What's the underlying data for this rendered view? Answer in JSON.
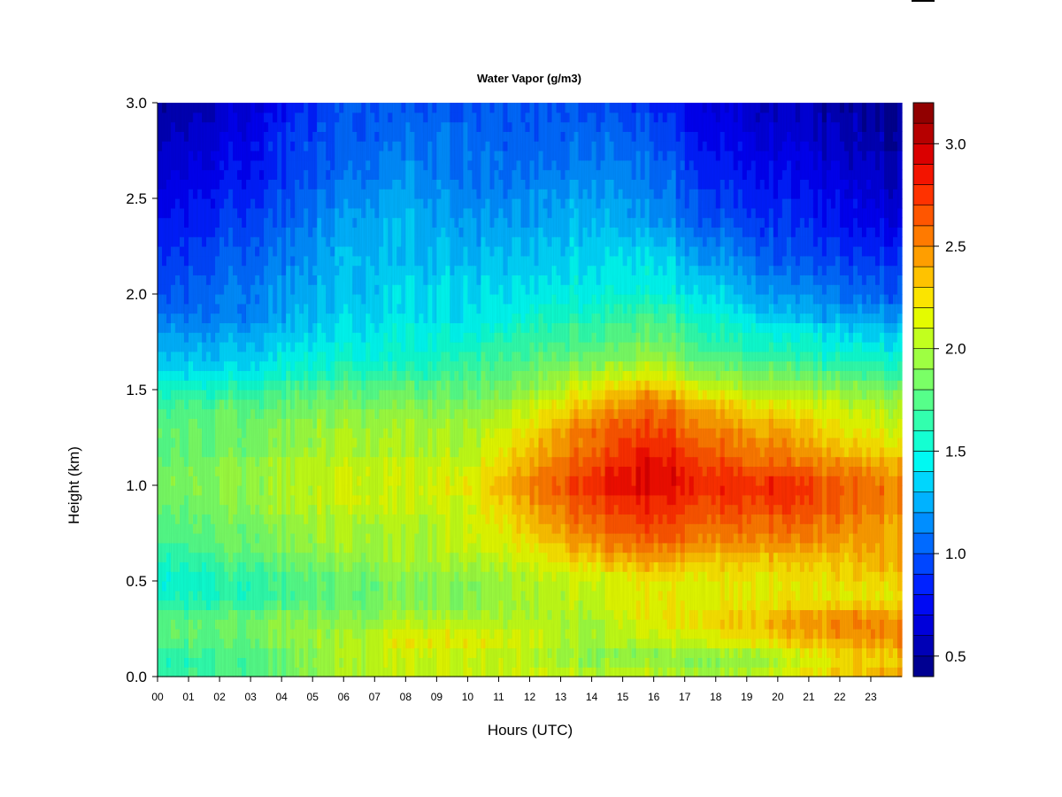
{
  "chart_data": {
    "type": "heatmap",
    "title": "Water Vapor (g/m3)",
    "xlabel": "Hours (UTC)",
    "ylabel": "Height (km)",
    "xlim": [
      0,
      24
    ],
    "ylim": [
      0.0,
      3.0
    ],
    "x_ticks": [
      "00",
      "01",
      "02",
      "03",
      "04",
      "05",
      "06",
      "07",
      "08",
      "09",
      "10",
      "11",
      "12",
      "13",
      "14",
      "15",
      "16",
      "17",
      "18",
      "19",
      "20",
      "21",
      "22",
      "23"
    ],
    "y_ticks": [
      "0.0",
      "0.5",
      "1.0",
      "1.5",
      "2.0",
      "2.5",
      "3.0"
    ],
    "colorbar": {
      "range": [
        0.4,
        3.2
      ],
      "ticks": [
        "0.5",
        "1.0",
        "1.5",
        "2.0",
        "2.5",
        "3.0"
      ],
      "levels": 28,
      "colors": [
        "#00007F",
        "#0000B0",
        "#0000E0",
        "#0010FF",
        "#0040FF",
        "#0070FF",
        "#00A0FF",
        "#00D0FF",
        "#00FFF0",
        "#20FFC0",
        "#50FF90",
        "#80FF60",
        "#B0FF30",
        "#E0FF00",
        "#FFE000",
        "#FFB000",
        "#FF8000",
        "#FF5000",
        "#FF2000",
        "#E00000",
        "#B00000",
        "#7F0000"
      ]
    },
    "heights_km": [
      0.0,
      0.1,
      0.2,
      0.3,
      0.4,
      0.5,
      0.6,
      0.7,
      0.8,
      0.9,
      1.0,
      1.1,
      1.2,
      1.3,
      1.4,
      1.5,
      1.6,
      1.7,
      1.8,
      1.9,
      2.0,
      2.2,
      2.4,
      2.6,
      2.8,
      3.0
    ],
    "hours": [
      0,
      2,
      4,
      6,
      8,
      10,
      12,
      14,
      16,
      18,
      20,
      22,
      24
    ],
    "values": [
      [
        1.7,
        1.7,
        1.8,
        2.0,
        2.1,
        2.1,
        2.1,
        2.1,
        2.1,
        2.0,
        2.1,
        2.3,
        2.4
      ],
      [
        1.6,
        1.7,
        1.8,
        2.0,
        2.1,
        2.1,
        2.0,
        1.9,
        1.9,
        1.9,
        2.0,
        2.2,
        2.3
      ],
      [
        1.8,
        1.8,
        1.9,
        2.0,
        2.2,
        2.2,
        2.1,
        2.0,
        2.1,
        2.2,
        2.3,
        2.4,
        2.5
      ],
      [
        1.8,
        1.8,
        1.9,
        1.9,
        2.0,
        2.0,
        2.0,
        2.0,
        2.2,
        2.3,
        2.4,
        2.5,
        2.5
      ],
      [
        1.6,
        1.6,
        1.7,
        1.8,
        1.9,
        1.9,
        2.0,
        2.1,
        2.2,
        2.2,
        2.2,
        2.2,
        2.2
      ],
      [
        1.5,
        1.6,
        1.7,
        1.8,
        1.9,
        1.9,
        2.0,
        2.1,
        2.2,
        2.2,
        2.2,
        2.2,
        2.3
      ],
      [
        1.6,
        1.7,
        1.8,
        1.9,
        2.0,
        2.0,
        2.1,
        2.3,
        2.4,
        2.3,
        2.3,
        2.3,
        2.4
      ],
      [
        1.7,
        1.8,
        1.9,
        2.0,
        2.0,
        2.1,
        2.2,
        2.5,
        2.6,
        2.5,
        2.5,
        2.4,
        2.4
      ],
      [
        1.8,
        1.8,
        1.9,
        2.0,
        2.0,
        2.1,
        2.3,
        2.6,
        2.7,
        2.6,
        2.6,
        2.5,
        2.4
      ],
      [
        1.8,
        1.9,
        2.0,
        2.1,
        2.1,
        2.1,
        2.4,
        2.7,
        2.8,
        2.7,
        2.7,
        2.6,
        2.5
      ],
      [
        1.9,
        1.9,
        2.0,
        2.1,
        2.1,
        2.2,
        2.5,
        2.8,
        2.9,
        2.8,
        2.8,
        2.6,
        2.5
      ],
      [
        1.8,
        1.9,
        2.0,
        2.1,
        2.1,
        2.1,
        2.4,
        2.7,
        2.9,
        2.7,
        2.6,
        2.5,
        2.4
      ],
      [
        1.8,
        1.8,
        1.9,
        2.0,
        2.0,
        2.0,
        2.3,
        2.6,
        2.8,
        2.6,
        2.5,
        2.3,
        2.2
      ],
      [
        1.8,
        1.8,
        1.9,
        2.0,
        2.0,
        2.0,
        2.2,
        2.6,
        2.7,
        2.5,
        2.4,
        2.2,
        2.1
      ],
      [
        1.7,
        1.8,
        1.8,
        1.9,
        1.9,
        1.9,
        2.1,
        2.4,
        2.6,
        2.4,
        2.2,
        2.1,
        2.0
      ],
      [
        1.6,
        1.6,
        1.7,
        1.8,
        1.8,
        1.8,
        1.9,
        2.2,
        2.4,
        2.1,
        2.0,
        1.9,
        1.9
      ],
      [
        1.4,
        1.4,
        1.5,
        1.6,
        1.6,
        1.7,
        1.8,
        2.0,
        2.1,
        1.9,
        1.8,
        1.7,
        1.6
      ],
      [
        1.3,
        1.3,
        1.4,
        1.5,
        1.5,
        1.6,
        1.7,
        1.8,
        1.9,
        1.7,
        1.6,
        1.5,
        1.5
      ],
      [
        1.2,
        1.2,
        1.3,
        1.4,
        1.5,
        1.5,
        1.6,
        1.7,
        1.8,
        1.6,
        1.5,
        1.4,
        1.3
      ],
      [
        1.1,
        1.1,
        1.2,
        1.4,
        1.4,
        1.4,
        1.5,
        1.6,
        1.7,
        1.5,
        1.3,
        1.2,
        1.2
      ],
      [
        1.0,
        1.1,
        1.2,
        1.3,
        1.4,
        1.4,
        1.4,
        1.5,
        1.5,
        1.4,
        1.2,
        1.1,
        1.0
      ],
      [
        0.9,
        1.0,
        1.1,
        1.3,
        1.3,
        1.3,
        1.3,
        1.4,
        1.4,
        1.2,
        1.0,
        0.9,
        0.9
      ],
      [
        0.8,
        0.9,
        1.0,
        1.2,
        1.3,
        1.2,
        1.2,
        1.3,
        1.2,
        1.0,
        0.9,
        0.8,
        0.7
      ],
      [
        0.7,
        0.8,
        0.9,
        1.1,
        1.2,
        1.1,
        1.1,
        1.2,
        1.1,
        0.9,
        0.8,
        0.7,
        0.6
      ],
      [
        0.6,
        0.7,
        0.9,
        1.0,
        1.1,
        1.1,
        1.0,
        1.1,
        1.0,
        0.8,
        0.7,
        0.6,
        0.5
      ],
      [
        0.5,
        0.6,
        0.8,
        1.0,
        1.0,
        1.0,
        1.0,
        1.0,
        0.9,
        0.7,
        0.6,
        0.5,
        0.5
      ]
    ]
  }
}
